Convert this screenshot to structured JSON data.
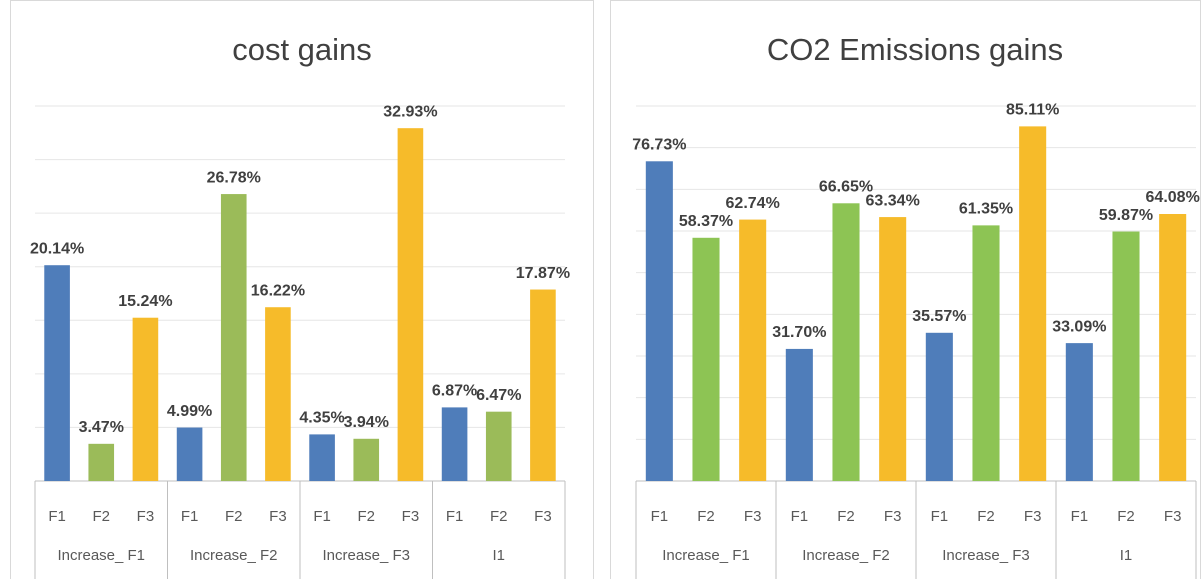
{
  "chart_data": [
    {
      "type": "grouped-bar",
      "title": "cost gains",
      "categories": [
        "Increase_ F1",
        "Increase_ F2",
        "Increase_ F3",
        "I1"
      ],
      "subcategories": [
        "F1",
        "F2",
        "F3"
      ],
      "colors": [
        "#4f7dba",
        "#9bbb59",
        "#f6bb2a"
      ],
      "values": [
        [
          20.14,
          3.47,
          15.24
        ],
        [
          4.99,
          26.78,
          16.22
        ],
        [
          4.35,
          3.94,
          32.93
        ],
        [
          6.87,
          6.47,
          17.87
        ]
      ],
      "value_labels": [
        [
          "20.14%",
          "3.47%",
          "15.24%"
        ],
        [
          "4.99%",
          "26.78%",
          "16.22%"
        ],
        [
          "4.35%",
          "3.94%",
          "32.93%"
        ],
        [
          "6.87%",
          "6.47%",
          "17.87%"
        ]
      ],
      "ylim": [
        0,
        35
      ],
      "yticks": [
        0,
        5,
        10,
        15,
        20,
        25,
        30,
        35
      ],
      "grid": true
    },
    {
      "type": "grouped-bar",
      "title": "CO2 Emissions gains",
      "categories": [
        "Increase_ F1",
        "Increase_ F2",
        "Increase_ F3",
        "I1"
      ],
      "subcategories": [
        "F1",
        "F2",
        "F3"
      ],
      "colors": [
        "#4f7dba",
        "#8dc454",
        "#f6bb2a"
      ],
      "values": [
        [
          76.73,
          58.37,
          62.74
        ],
        [
          31.7,
          66.65,
          63.34
        ],
        [
          35.57,
          61.35,
          85.11
        ],
        [
          33.09,
          59.87,
          64.08
        ]
      ],
      "value_labels": [
        [
          "76.73%",
          "58.37%",
          "62.74%"
        ],
        [
          "31.70%",
          "66.65%",
          "63.34%"
        ],
        [
          "35.57%",
          "61.35%",
          "85.11%"
        ],
        [
          "33.09%",
          "59.87%",
          "64.08%"
        ]
      ],
      "ylim": [
        0,
        90
      ],
      "yticks": [
        0,
        10,
        20,
        30,
        40,
        50,
        60,
        70,
        80,
        90
      ],
      "grid": true
    }
  ]
}
